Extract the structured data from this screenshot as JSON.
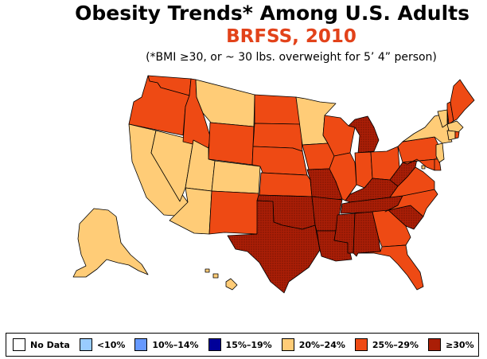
{
  "header": {
    "title": "Obesity Trends*  Among U.S. Adults",
    "subtitle": "BRFSS, 2010",
    "note": "(*BMI ≥30, or ~ 30 lbs. overweight for 5’ 4” person)"
  },
  "colors": {
    "no_data": "#FFFFFF",
    "lt10": "#99CCFF",
    "10_14": "#6699FF",
    "15_19": "#000099",
    "20_24": "#FFCC77",
    "25_29": "#EE4A14",
    "gte30": "#AA1E06",
    "border": "#000000"
  },
  "legend": [
    {
      "label": "No Data",
      "color": "#FFFFFF"
    },
    {
      "label": "<10%",
      "color": "#99CCFF"
    },
    {
      "label": "10%–14%",
      "color": "#6699FF"
    },
    {
      "label": "15%–19%",
      "color": "#000099"
    },
    {
      "label": "20%–24%",
      "color": "#FFCC77"
    },
    {
      "label": "25%–29%",
      "color": "#EE4A14"
    },
    {
      "label": "≥30%",
      "color": "#AA1E06"
    }
  ],
  "states": {
    "WA": "25_29",
    "OR": "25_29",
    "CA": "20_24",
    "NV": "20_24",
    "ID": "25_29",
    "MT": "20_24",
    "WY": "25_29",
    "UT": "20_24",
    "AZ": "20_24",
    "CO": "20_24",
    "NM": "25_29",
    "ND": "25_29",
    "SD": "25_29",
    "NE": "25_29",
    "KS": "25_29",
    "OK": "gte30",
    "TX": "gte30",
    "MN": "20_24",
    "IA": "25_29",
    "MO": "gte30",
    "AR": "gte30",
    "LA": "gte30",
    "WI": "25_29",
    "IL": "25_29",
    "MI": "gte30",
    "IN": "25_29",
    "OH": "25_29",
    "KY": "gte30",
    "TN": "gte30",
    "MS": "gte30",
    "AL": "gte30",
    "GA": "25_29",
    "FL": "25_29",
    "SC": "gte30",
    "NC": "25_29",
    "VA": "25_29",
    "WV": "gte30",
    "PA": "25_29",
    "NY": "20_24",
    "VT": "20_24",
    "NH": "25_29",
    "ME": "25_29",
    "MA": "20_24",
    "CT": "20_24",
    "RI": "25_29",
    "NJ": "20_24",
    "DE": "25_29",
    "MD": "25_29",
    "DC": "20_24",
    "AK": "20_24",
    "HI": "20_24"
  }
}
